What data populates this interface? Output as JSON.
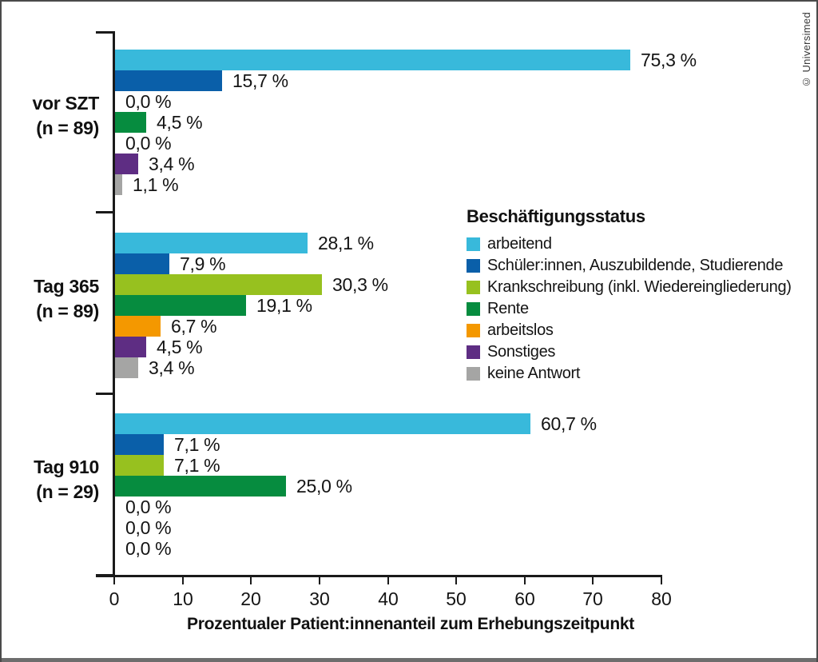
{
  "figure": {
    "copyright": "© Universimed"
  },
  "chart_data": {
    "type": "bar",
    "orientation": "horizontal",
    "title": "",
    "xlabel": "Prozentualer Patient:innenanteil zum Erhebungszeitpunkt",
    "ylabel": "",
    "xlim": [
      0,
      80
    ],
    "xticks": [
      0,
      10,
      20,
      30,
      40,
      50,
      60,
      70,
      80
    ],
    "grid": false,
    "legend_title": "Beschäftigungsstatus",
    "legend_position": "right-middle",
    "series": [
      {
        "name": "arbeitend",
        "color": "#38b9db"
      },
      {
        "name": "Schüler:innen, Auszubildende, Studierende",
        "color": "#0a5fa9"
      },
      {
        "name": "Krankschreibung (inkl. Wiedereingliederung)",
        "color": "#97c11f"
      },
      {
        "name": "Rente",
        "color": "#068c3f"
      },
      {
        "name": "arbeitslos",
        "color": "#f49800"
      },
      {
        "name": "Sonstiges",
        "color": "#5e2d83"
      },
      {
        "name": "keine Antwort",
        "color": "#a5a5a4"
      }
    ],
    "groups": [
      {
        "label": "vor SZT",
        "n_label": "(n = 89)",
        "values": [
          75.3,
          15.7,
          0.0,
          4.5,
          0.0,
          3.4,
          1.1
        ],
        "value_labels": [
          "75,3 %",
          "15,7 %",
          "0,0 %",
          "4,5 %",
          "0,0 %",
          "3,4 %",
          "1,1 %"
        ]
      },
      {
        "label": "Tag 365",
        "n_label": "(n = 89)",
        "values": [
          28.1,
          7.9,
          30.3,
          19.1,
          6.7,
          4.5,
          3.4
        ],
        "value_labels": [
          "28,1 %",
          "7,9 %",
          "30,3 %",
          "19,1 %",
          "6,7 %",
          "4,5 %",
          "3,4 %"
        ]
      },
      {
        "label": "Tag 910",
        "n_label": "(n = 29)",
        "values": [
          60.7,
          7.1,
          7.1,
          25.0,
          0.0,
          0.0,
          0.0
        ],
        "value_labels": [
          "60,7 %",
          "7,1 %",
          "7,1 %",
          "25,0 %",
          "0,0 %",
          "0,0 %",
          "0,0 %"
        ]
      }
    ]
  }
}
